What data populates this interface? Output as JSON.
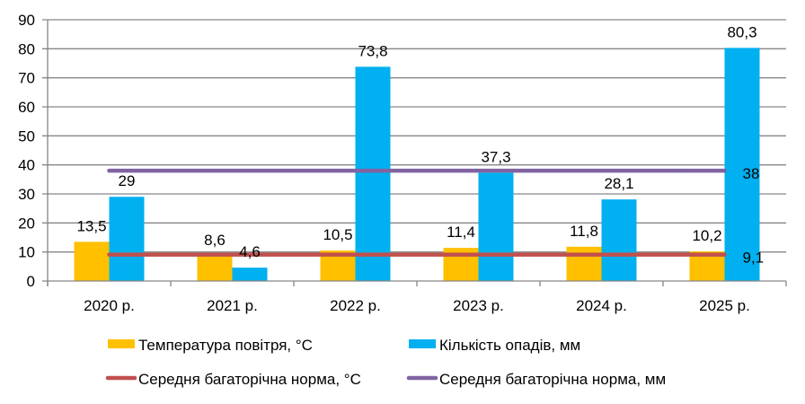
{
  "chart_data": {
    "type": "bar",
    "title": "",
    "xlabel": "",
    "ylabel": "",
    "ylim": [
      0,
      90
    ],
    "yticks": [
      0,
      10,
      20,
      30,
      40,
      50,
      60,
      70,
      80,
      90
    ],
    "grid": true,
    "legend_position": "bottom",
    "categories": [
      "2020 р.",
      "2021 р.",
      "2022 р.",
      "2023 р.",
      "2024 р.",
      "2025 р."
    ],
    "series": [
      {
        "name": "Температура повітря, °С",
        "kind": "bar",
        "color": "#FFC000",
        "values": [
          13.5,
          8.6,
          10.5,
          11.4,
          11.8,
          10.2
        ],
        "labels": [
          "13,5",
          "8,6",
          "10,5",
          "11,4",
          "11,8",
          "10,2"
        ]
      },
      {
        "name": "Кількість опадів, мм",
        "kind": "bar",
        "color": "#00B0F0",
        "values": [
          29,
          4.6,
          73.8,
          37.3,
          28.1,
          80.3
        ],
        "labels": [
          "29",
          "4,6",
          "73,8",
          "37,3",
          "28,1",
          "80,3"
        ]
      },
      {
        "name": "Середня багаторічна норма, °С",
        "kind": "line",
        "color": "#C0504D",
        "values": [
          9.1,
          9.1,
          9.1,
          9.1,
          9.1,
          9.1
        ],
        "end_label": "9,1"
      },
      {
        "name": "Середня багаторічна норма, мм",
        "kind": "line",
        "color": "#8064A2",
        "values": [
          38,
          38,
          38,
          38,
          38,
          38
        ],
        "end_label": "38"
      }
    ]
  }
}
